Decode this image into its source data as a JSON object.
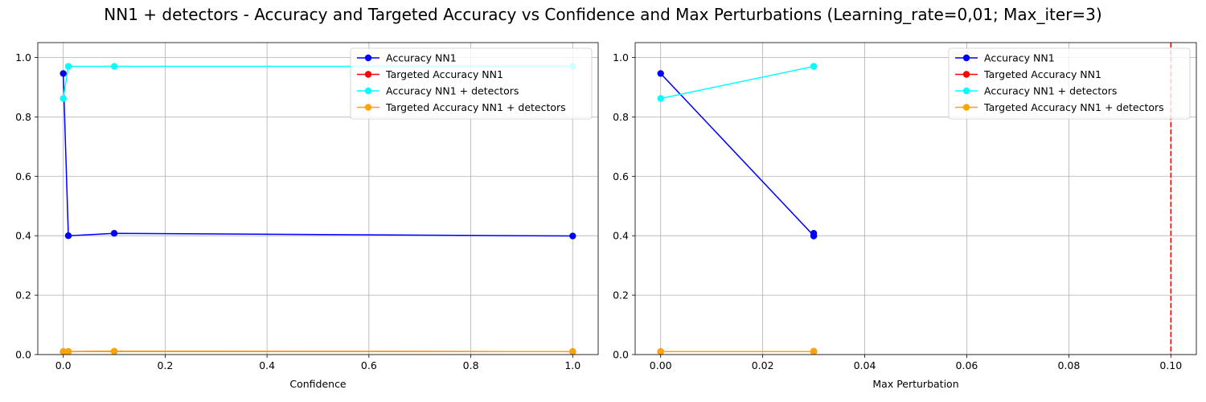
{
  "figure": {
    "title": "NN1 + detectors - Accuracy and Targeted Accuracy vs Confidence and Max Perturbations (Learning_rate=0,01; Max_iter=3)"
  },
  "chart_data": [
    {
      "type": "line",
      "title": "",
      "xlabel": "Confidence",
      "ylabel": "",
      "xlim": [
        -0.05,
        1.05
      ],
      "ylim": [
        0,
        1.05
      ],
      "xticks": [
        0.0,
        0.2,
        0.4,
        0.6,
        0.8,
        1.0
      ],
      "xtick_labels": [
        "0.0",
        "0.2",
        "0.4",
        "0.6",
        "0.8",
        "1.0"
      ],
      "yticks": [
        0.0,
        0.2,
        0.4,
        0.6,
        0.8,
        1.0
      ],
      "ytick_labels": [
        "0.0",
        "0.2",
        "0.4",
        "0.6",
        "0.8",
        "1.0"
      ],
      "grid": true,
      "legend_position": "top-right",
      "series": [
        {
          "name": "Accuracy NN1",
          "color": "#0000ff",
          "x": [
            0.0,
            0.01,
            0.1,
            1.0
          ],
          "y": [
            0.946,
            0.4,
            0.408,
            0.399
          ]
        },
        {
          "name": "Targeted Accuracy NN1",
          "color": "#ff0000",
          "x": [
            0.0,
            0.01,
            0.1,
            1.0
          ],
          "y": [
            0.01,
            0.01,
            0.011,
            0.01
          ]
        },
        {
          "name": "Accuracy NN1 + detectors",
          "color": "#00ffff",
          "x": [
            0.0,
            0.01,
            0.1,
            1.0
          ],
          "y": [
            0.862,
            0.97,
            0.97,
            0.97
          ]
        },
        {
          "name": "Targeted Accuracy NN1 + detectors",
          "color": "#ffa500",
          "x": [
            0.0,
            0.01,
            0.1,
            1.0
          ],
          "y": [
            0.01,
            0.01,
            0.011,
            0.01
          ]
        }
      ],
      "vlines": []
    },
    {
      "type": "line",
      "title": "",
      "xlabel": "Max Perturbation",
      "ylabel": "",
      "xlim": [
        -0.005,
        0.105
      ],
      "ylim": [
        0,
        1.05
      ],
      "xticks": [
        0.0,
        0.02,
        0.04,
        0.06,
        0.08,
        0.1
      ],
      "xtick_labels": [
        "0.00",
        "0.02",
        "0.04",
        "0.06",
        "0.08",
        "0.10"
      ],
      "yticks": [
        0.0,
        0.2,
        0.4,
        0.6,
        0.8,
        1.0
      ],
      "ytick_labels": [
        "0.0",
        "0.2",
        "0.4",
        "0.6",
        "0.8",
        "1.0"
      ],
      "grid": true,
      "legend_position": "top-right",
      "series": [
        {
          "name": "Accuracy NN1",
          "color": "#0000ff",
          "x": [
            0.0,
            0.03,
            0.03,
            0.03
          ],
          "y": [
            0.946,
            0.4,
            0.408,
            0.399
          ]
        },
        {
          "name": "Targeted Accuracy NN1",
          "color": "#ff0000",
          "x": [
            0.0,
            0.03,
            0.03,
            0.03
          ],
          "y": [
            0.01,
            0.01,
            0.011,
            0.01
          ]
        },
        {
          "name": "Accuracy NN1 + detectors",
          "color": "#00ffff",
          "x": [
            0.0,
            0.03,
            0.03,
            0.03
          ],
          "y": [
            0.862,
            0.97,
            0.97,
            0.97
          ]
        },
        {
          "name": "Targeted Accuracy NN1 + detectors",
          "color": "#ffa500",
          "x": [
            0.0,
            0.03,
            0.03,
            0.03
          ],
          "y": [
            0.01,
            0.01,
            0.011,
            0.01
          ]
        }
      ],
      "vlines": [
        {
          "x": 0.1,
          "color": "#ff0000",
          "style": "dashed"
        }
      ]
    }
  ]
}
